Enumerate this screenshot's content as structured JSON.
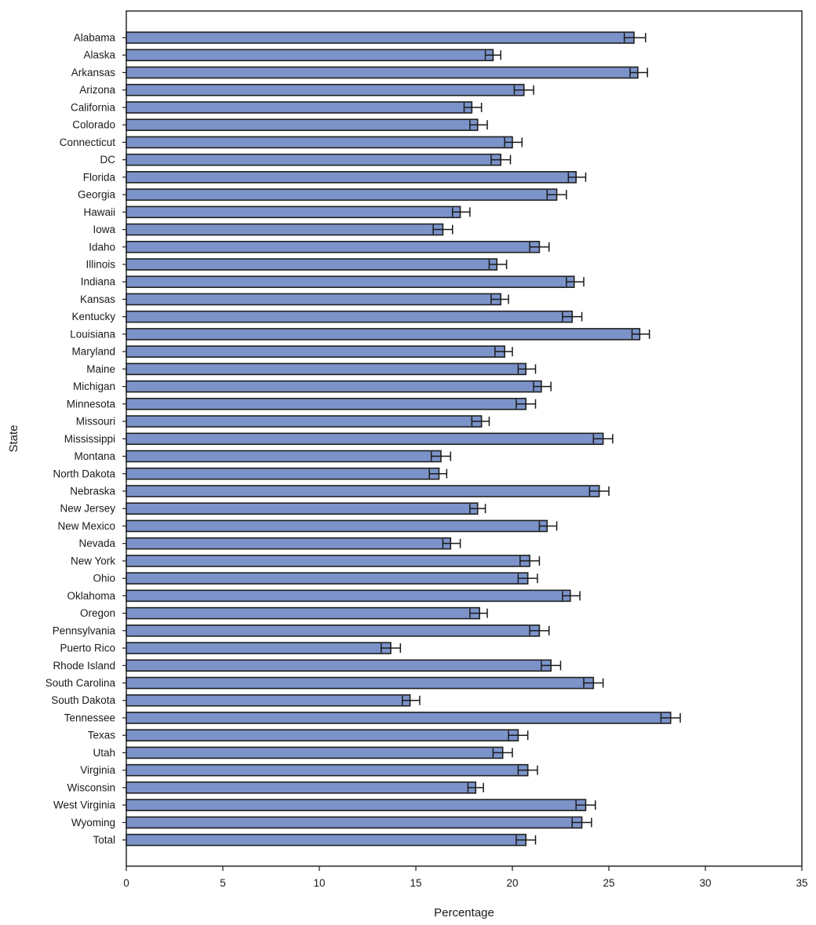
{
  "chart_data": {
    "type": "bar",
    "orientation": "horizontal",
    "xlabel": "Percentage",
    "ylabel": "State",
    "xlim": [
      0,
      35
    ],
    "xticks": [
      0,
      5,
      10,
      15,
      20,
      25,
      30,
      35
    ],
    "grid": false,
    "legend": "none",
    "bar_color": "#7b93c9",
    "bar_edge_color": "#1f1f1f",
    "error_bars": true,
    "categories": [
      "Alabama",
      "Alaska",
      "Arkansas",
      "Arizona",
      "California",
      "Colorado",
      "Connecticut",
      "DC",
      "Florida",
      "Georgia",
      "Hawaii",
      "Iowa",
      "Idaho",
      "Illinois",
      "Indiana",
      "Kansas",
      "Kentucky",
      "Louisiana",
      "Maryland",
      "Maine",
      "Michigan",
      "Minnesota",
      "Missouri",
      "Mississippi",
      "Montana",
      "North Dakota",
      "Nebraska",
      "New Jersey",
      "New Mexico",
      "Nevada",
      "New York",
      "Ohio",
      "Oklahoma",
      "Oregon",
      "Pennsylvania",
      "Puerto Rico",
      "Rhode Island",
      "South Carolina",
      "South Dakota",
      "Tennessee",
      "Texas",
      "Utah",
      "Virginia",
      "Wisconsin",
      "West Virginia",
      "Wyoming",
      "Total"
    ],
    "values": [
      26.3,
      19.0,
      26.5,
      20.6,
      17.9,
      18.2,
      20.0,
      19.4,
      23.3,
      22.3,
      17.3,
      16.4,
      21.4,
      19.2,
      23.2,
      19.4,
      23.1,
      26.6,
      19.6,
      20.7,
      21.5,
      20.7,
      18.4,
      24.7,
      16.3,
      16.2,
      24.5,
      18.2,
      21.8,
      16.8,
      20.9,
      20.8,
      23.0,
      18.3,
      21.4,
      13.7,
      22.0,
      24.2,
      14.7,
      28.2,
      20.3,
      19.5,
      20.8,
      18.1,
      23.8,
      23.6,
      20.7
    ],
    "ci_lower": [
      25.8,
      18.6,
      26.1,
      20.1,
      17.5,
      17.8,
      19.6,
      18.9,
      22.9,
      21.8,
      16.9,
      15.9,
      20.9,
      18.8,
      22.8,
      18.9,
      22.6,
      26.2,
      19.1,
      20.3,
      21.1,
      20.2,
      17.9,
      24.2,
      15.8,
      15.7,
      24.0,
      17.8,
      21.4,
      16.4,
      20.4,
      20.3,
      22.6,
      17.8,
      20.9,
      13.2,
      21.5,
      23.7,
      14.3,
      27.7,
      19.8,
      19.0,
      20.3,
      17.7,
      23.3,
      23.1,
      20.2
    ],
    "ci_upper": [
      26.9,
      19.4,
      27.0,
      21.1,
      18.4,
      18.7,
      20.5,
      19.9,
      23.8,
      22.8,
      17.8,
      16.9,
      21.9,
      19.7,
      23.7,
      19.8,
      23.6,
      27.1,
      20.0,
      21.2,
      22.0,
      21.2,
      18.8,
      25.2,
      16.8,
      16.6,
      25.0,
      18.6,
      22.3,
      17.3,
      21.4,
      21.3,
      23.5,
      18.7,
      21.9,
      14.2,
      22.5,
      24.7,
      15.2,
      28.7,
      20.8,
      20.0,
      21.3,
      18.5,
      24.3,
      24.1,
      21.2
    ]
  }
}
